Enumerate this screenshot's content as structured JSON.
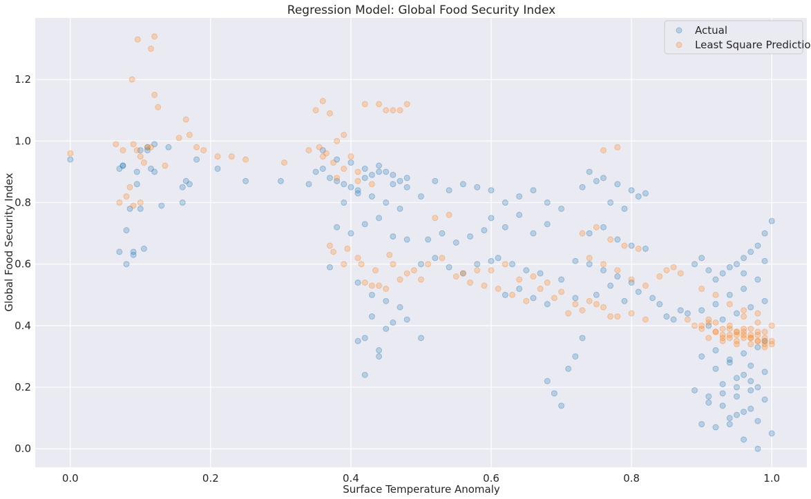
{
  "chart_data": {
    "type": "scatter",
    "title": "Regression Model: Global Food Security Index",
    "xlabel": "Surface Temperature Anomaly",
    "ylabel": "Global Food Security Index",
    "xlim": [
      -0.05,
      1.05
    ],
    "ylim": [
      -0.06,
      1.4
    ],
    "xticks": [
      0.0,
      0.2,
      0.4,
      0.6,
      0.8,
      1.0
    ],
    "xtick_labels": [
      "0.0",
      "0.2",
      "0.4",
      "0.6",
      "0.8",
      "1.0"
    ],
    "yticks": [
      0.0,
      0.2,
      0.4,
      0.6,
      0.8,
      1.0,
      1.2
    ],
    "ytick_labels": [
      "0.0",
      "0.2",
      "0.4",
      "0.6",
      "0.8",
      "1.0",
      "1.2"
    ],
    "grid": true,
    "background": "#eaeaf2",
    "legend_position": "top-right",
    "series": [
      {
        "name": "Actual",
        "color": "#1f77b4",
        "opacity": 0.25,
        "x": [
          0.0,
          0.07,
          0.075,
          0.08,
          0.085,
          0.09,
          0.095,
          0.1,
          0.105,
          0.11,
          0.115,
          0.12,
          0.13,
          0.14,
          0.16,
          0.165,
          0.17,
          0.18,
          0.21,
          0.25,
          0.3,
          0.08,
          0.09,
          0.07,
          0.1,
          0.11,
          0.095,
          0.16,
          0.075,
          0.12,
          0.34,
          0.35,
          0.36,
          0.37,
          0.38,
          0.39,
          0.4,
          0.41,
          0.42,
          0.43,
          0.44,
          0.45,
          0.46,
          0.47,
          0.48,
          0.36,
          0.38,
          0.4,
          0.42,
          0.44,
          0.46,
          0.48,
          0.37,
          0.39,
          0.41,
          0.43,
          0.45,
          0.47,
          0.38,
          0.4,
          0.42,
          0.44,
          0.46,
          0.48,
          0.41,
          0.43,
          0.45,
          0.42,
          0.44,
          0.41,
          0.42,
          0.43,
          0.44,
          0.45,
          0.46,
          0.47,
          0.48,
          0.5,
          0.5,
          0.52,
          0.54,
          0.56,
          0.58,
          0.6,
          0.51,
          0.53,
          0.55,
          0.57,
          0.59,
          0.5,
          0.52,
          0.54,
          0.56,
          0.58,
          0.6,
          0.62,
          0.64,
          0.66,
          0.68,
          0.7,
          0.61,
          0.63,
          0.65,
          0.67,
          0.62,
          0.64,
          0.66,
          0.68,
          0.6,
          0.62,
          0.64,
          0.66,
          0.68,
          0.7,
          0.72,
          0.74,
          0.76,
          0.78,
          0.8,
          0.82,
          0.73,
          0.75,
          0.77,
          0.79,
          0.81,
          0.74,
          0.76,
          0.78,
          0.8,
          0.82,
          0.72,
          0.74,
          0.76,
          0.78,
          0.8,
          0.68,
          0.69,
          0.7,
          0.71,
          0.72,
          0.73,
          0.75,
          0.77,
          0.79,
          0.81,
          0.83,
          0.84,
          0.85,
          0.86,
          0.87,
          0.88,
          0.89,
          0.9,
          0.91,
          0.92,
          0.93,
          0.94,
          0.95,
          0.96,
          0.97,
          0.98,
          0.99,
          1.0,
          0.9,
          0.92,
          0.94,
          0.96,
          0.98,
          1.0,
          0.91,
          0.93,
          0.95,
          0.97,
          0.99,
          0.9,
          0.92,
          0.94,
          0.96,
          0.98,
          0.89,
          0.91,
          0.93,
          0.95,
          0.97,
          0.99,
          0.9,
          0.92,
          0.94,
          0.96,
          0.98,
          0.91,
          0.93,
          0.95,
          0.97,
          0.99,
          0.92,
          0.94,
          0.96,
          0.98,
          0.93,
          0.95,
          0.97,
          0.99,
          0.94,
          0.96,
          0.98,
          0.95,
          0.97,
          0.99,
          0.96
        ],
        "y": [
          0.94,
          0.91,
          0.92,
          0.71,
          0.78,
          0.64,
          0.9,
          0.97,
          0.65,
          0.98,
          0.91,
          0.9,
          0.79,
          0.98,
          0.8,
          0.87,
          0.86,
          0.94,
          0.91,
          0.87,
          0.87,
          0.6,
          0.63,
          0.64,
          0.78,
          0.97,
          0.86,
          0.85,
          0.92,
          0.99,
          0.86,
          0.9,
          0.91,
          0.88,
          0.87,
          0.86,
          0.85,
          0.84,
          0.88,
          0.89,
          0.9,
          0.9,
          0.89,
          0.87,
          0.88,
          0.97,
          0.94,
          0.93,
          0.91,
          0.92,
          0.86,
          0.85,
          0.59,
          0.8,
          0.83,
          0.82,
          0.8,
          0.78,
          0.72,
          0.7,
          0.73,
          0.75,
          0.69,
          0.68,
          0.54,
          0.5,
          0.48,
          0.36,
          0.32,
          0.35,
          0.24,
          0.43,
          0.3,
          0.39,
          0.41,
          0.46,
          0.42,
          0.36,
          0.82,
          0.87,
          0.84,
          0.86,
          0.85,
          0.84,
          0.68,
          0.7,
          0.67,
          0.69,
          0.71,
          0.6,
          0.62,
          0.59,
          0.57,
          0.6,
          0.61,
          0.8,
          0.82,
          0.84,
          0.8,
          0.78,
          0.62,
          0.6,
          0.58,
          0.57,
          0.5,
          0.52,
          0.49,
          0.47,
          0.75,
          0.72,
          0.76,
          0.7,
          0.73,
          0.55,
          0.49,
          0.9,
          0.88,
          0.86,
          0.84,
          0.83,
          0.85,
          0.87,
          0.8,
          0.78,
          0.82,
          0.7,
          0.72,
          0.68,
          0.66,
          0.65,
          0.61,
          0.6,
          0.58,
          0.56,
          0.54,
          0.22,
          0.18,
          0.14,
          0.26,
          0.3,
          0.36,
          0.5,
          0.53,
          0.48,
          0.51,
          0.49,
          0.47,
          0.43,
          0.42,
          0.45,
          0.44,
          0.6,
          0.62,
          0.58,
          0.55,
          0.57,
          0.59,
          0.6,
          0.62,
          0.64,
          0.66,
          0.7,
          0.74,
          0.08,
          0.07,
          0.1,
          0.12,
          0.09,
          0.05,
          0.15,
          0.18,
          0.2,
          0.22,
          0.25,
          0.3,
          0.32,
          0.28,
          0.24,
          0.2,
          0.19,
          0.17,
          0.14,
          0.11,
          0.13,
          0.16,
          0.45,
          0.47,
          0.5,
          0.52,
          0.55,
          0.4,
          0.42,
          0.44,
          0.46,
          0.48,
          0.26,
          0.29,
          0.31,
          0.33,
          0.21,
          0.23,
          0.27,
          0.35,
          0.08,
          0.03,
          0.0,
          0.17,
          0.19,
          0.61,
          0.57
        ]
      },
      {
        "name": "Least Square Prediction",
        "color": "#ff7f0e",
        "opacity": 0.25,
        "x": [
          0.0,
          0.065,
          0.07,
          0.075,
          0.08,
          0.085,
          0.09,
          0.095,
          0.1,
          0.105,
          0.11,
          0.115,
          0.12,
          0.125,
          0.135,
          0.155,
          0.165,
          0.17,
          0.18,
          0.19,
          0.21,
          0.23,
          0.25,
          0.305,
          0.088,
          0.096,
          0.115,
          0.12,
          0.1,
          0.09,
          0.34,
          0.35,
          0.36,
          0.37,
          0.38,
          0.39,
          0.4,
          0.41,
          0.36,
          0.38,
          0.355,
          0.365,
          0.375,
          0.39,
          0.41,
          0.42,
          0.43,
          0.44,
          0.45,
          0.46,
          0.47,
          0.48,
          0.375,
          0.395,
          0.415,
          0.435,
          0.455,
          0.37,
          0.39,
          0.41,
          0.43,
          0.45,
          0.47,
          0.49,
          0.42,
          0.44,
          0.46,
          0.48,
          0.5,
          0.52,
          0.54,
          0.56,
          0.58,
          0.51,
          0.53,
          0.55,
          0.57,
          0.59,
          0.6,
          0.62,
          0.64,
          0.66,
          0.68,
          0.61,
          0.63,
          0.65,
          0.67,
          0.69,
          0.7,
          0.72,
          0.74,
          0.76,
          0.71,
          0.73,
          0.75,
          0.77,
          0.73,
          0.75,
          0.77,
          0.79,
          0.81,
          0.74,
          0.76,
          0.78,
          0.8,
          0.82,
          0.84,
          0.85,
          0.86,
          0.87,
          0.78,
          0.8,
          0.82,
          0.76,
          0.78,
          0.88,
          0.89,
          0.9,
          0.91,
          0.92,
          0.93,
          0.94,
          0.95,
          0.96,
          0.97,
          0.98,
          0.99,
          1.0,
          0.9,
          0.92,
          0.94,
          0.96,
          0.98,
          1.0,
          0.91,
          0.93,
          0.95,
          0.97,
          0.99,
          0.92,
          0.94,
          0.96,
          0.98,
          0.93,
          0.95,
          0.97,
          0.99,
          0.94,
          0.96,
          0.98,
          0.95,
          0.97,
          0.99,
          0.96,
          0.98,
          0.97,
          0.99,
          0.9,
          0.92,
          0.94,
          0.96,
          0.98,
          1.0,
          0.91,
          0.93,
          0.95
        ],
        "y": [
          0.96,
          0.99,
          0.8,
          0.97,
          0.82,
          0.85,
          0.99,
          0.97,
          0.95,
          0.93,
          0.98,
          1.3,
          1.15,
          1.11,
          0.92,
          1.01,
          1.07,
          1.02,
          0.98,
          0.97,
          0.95,
          0.95,
          0.94,
          0.93,
          1.2,
          1.33,
          0.98,
          1.34,
          0.8,
          0.79,
          0.97,
          1.1,
          1.13,
          1.09,
          1.0,
          1.02,
          0.95,
          0.9,
          0.95,
          0.88,
          0.98,
          0.96,
          0.93,
          0.91,
          0.87,
          1.12,
          0.86,
          1.12,
          1.1,
          1.1,
          1.1,
          1.12,
          0.64,
          0.65,
          0.6,
          0.58,
          0.63,
          0.66,
          0.6,
          0.62,
          0.53,
          0.52,
          0.55,
          0.58,
          0.54,
          0.53,
          0.6,
          0.57,
          0.55,
          0.75,
          0.76,
          0.57,
          0.58,
          0.6,
          0.62,
          0.56,
          0.54,
          0.53,
          0.58,
          0.6,
          0.55,
          0.56,
          0.54,
          0.52,
          0.5,
          0.48,
          0.52,
          0.49,
          0.51,
          0.47,
          0.48,
          0.46,
          0.44,
          0.45,
          0.47,
          0.43,
          0.7,
          0.72,
          0.68,
          0.66,
          0.65,
          0.62,
          0.6,
          0.58,
          0.55,
          0.53,
          0.56,
          0.58,
          0.59,
          0.57,
          0.43,
          0.44,
          0.42,
          0.97,
          0.98,
          0.42,
          0.4,
          0.39,
          0.41,
          0.38,
          0.37,
          0.36,
          0.38,
          0.37,
          0.36,
          0.35,
          0.34,
          0.35,
          0.4,
          0.38,
          0.37,
          0.36,
          0.35,
          0.34,
          0.42,
          0.39,
          0.38,
          0.37,
          0.36,
          0.41,
          0.39,
          0.38,
          0.37,
          0.36,
          0.35,
          0.34,
          0.33,
          0.4,
          0.39,
          0.38,
          0.37,
          0.36,
          0.35,
          0.43,
          0.41,
          0.39,
          0.38,
          0.52,
          0.5,
          0.47,
          0.45,
          0.44,
          0.4,
          0.36,
          0.35,
          0.34
        ]
      }
    ]
  }
}
